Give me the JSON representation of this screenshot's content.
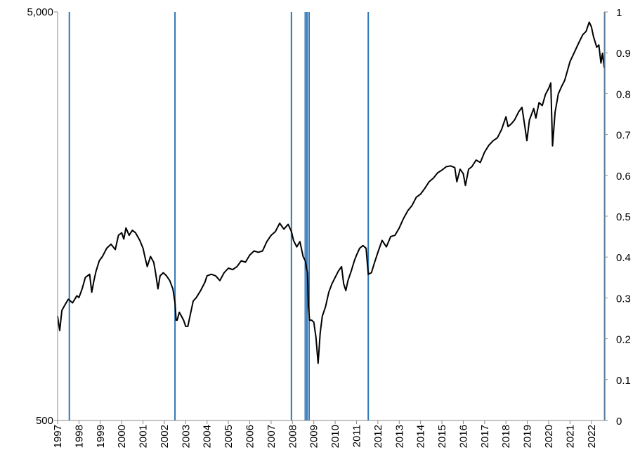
{
  "chart_data": {
    "type": "line",
    "title": "",
    "xlabel": "",
    "ylabel": "",
    "y_left": {
      "scale": "log",
      "range": [
        500,
        5000
      ],
      "tick_labels": [
        "5,000",
        "500"
      ]
    },
    "y_right": {
      "range": [
        0,
        1
      ],
      "tick_labels": [
        "1",
        "0.9",
        "0.8",
        "0.7",
        "0.6",
        "0.5",
        "0.4",
        "0.3",
        "0.2",
        "0.1",
        "0"
      ]
    },
    "x_range": [
      1997.0,
      2022.6
    ],
    "x_tick_labels": [
      "1997",
      "1998",
      "1999",
      "2000",
      "2001",
      "2002",
      "2003",
      "2004",
      "2005",
      "2006",
      "2007",
      "2008",
      "2009",
      "2010",
      "2011",
      "2012",
      "2013",
      "2014",
      "2015",
      "2016",
      "2017",
      "2018",
      "2019",
      "2020",
      "2021",
      "2022"
    ],
    "grid": false,
    "legend": "none",
    "line_color": "#000000",
    "vline_color": "#2e75b6",
    "series": [
      {
        "points": [
          [
            1997.0,
            900
          ],
          [
            1997.1,
            830
          ],
          [
            1997.2,
            930
          ],
          [
            1997.35,
            960
          ],
          [
            1997.5,
            990
          ],
          [
            1997.7,
            970
          ],
          [
            1997.9,
            1010
          ],
          [
            1998.0,
            1000
          ],
          [
            1998.15,
            1050
          ],
          [
            1998.3,
            1120
          ],
          [
            1998.5,
            1140
          ],
          [
            1998.6,
            1030
          ],
          [
            1998.7,
            1100
          ],
          [
            1998.8,
            1160
          ],
          [
            1998.95,
            1230
          ],
          [
            1999.1,
            1260
          ],
          [
            1999.3,
            1320
          ],
          [
            1999.5,
            1350
          ],
          [
            1999.7,
            1310
          ],
          [
            1999.85,
            1420
          ],
          [
            2000.0,
            1440
          ],
          [
            2000.1,
            1390
          ],
          [
            2000.2,
            1480
          ],
          [
            2000.35,
            1420
          ],
          [
            2000.5,
            1460
          ],
          [
            2000.65,
            1440
          ],
          [
            2000.85,
            1380
          ],
          [
            2001.0,
            1320
          ],
          [
            2001.1,
            1250
          ],
          [
            2001.2,
            1190
          ],
          [
            2001.35,
            1260
          ],
          [
            2001.5,
            1220
          ],
          [
            2001.6,
            1140
          ],
          [
            2001.7,
            1050
          ],
          [
            2001.8,
            1130
          ],
          [
            2001.95,
            1150
          ],
          [
            2002.1,
            1130
          ],
          [
            2002.25,
            1100
          ],
          [
            2002.4,
            1050
          ],
          [
            2002.5,
            970
          ],
          [
            2002.55,
            880
          ],
          [
            2002.6,
            880
          ],
          [
            2002.7,
            920
          ],
          [
            2002.8,
            900
          ],
          [
            2002.9,
            880
          ],
          [
            2003.0,
            850
          ],
          [
            2003.1,
            850
          ],
          [
            2003.2,
            900
          ],
          [
            2003.35,
            980
          ],
          [
            2003.5,
            1000
          ],
          [
            2003.7,
            1040
          ],
          [
            2003.9,
            1090
          ],
          [
            2004.0,
            1130
          ],
          [
            2004.2,
            1140
          ],
          [
            2004.4,
            1130
          ],
          [
            2004.6,
            1100
          ],
          [
            2004.8,
            1150
          ],
          [
            2005.0,
            1180
          ],
          [
            2005.2,
            1170
          ],
          [
            2005.4,
            1190
          ],
          [
            2005.6,
            1230
          ],
          [
            2005.8,
            1220
          ],
          [
            2006.0,
            1270
          ],
          [
            2006.2,
            1300
          ],
          [
            2006.4,
            1290
          ],
          [
            2006.6,
            1300
          ],
          [
            2006.8,
            1370
          ],
          [
            2007.0,
            1420
          ],
          [
            2007.2,
            1450
          ],
          [
            2007.4,
            1520
          ],
          [
            2007.6,
            1470
          ],
          [
            2007.8,
            1510
          ],
          [
            2007.95,
            1450
          ],
          [
            2008.05,
            1380
          ],
          [
            2008.2,
            1330
          ],
          [
            2008.35,
            1370
          ],
          [
            2008.5,
            1260
          ],
          [
            2008.6,
            1230
          ],
          [
            2008.7,
            1150
          ],
          [
            2008.75,
            950
          ],
          [
            2008.8,
            880
          ],
          [
            2008.9,
            880
          ],
          [
            2009.0,
            870
          ],
          [
            2009.1,
            800
          ],
          [
            2009.2,
            690
          ],
          [
            2009.3,
            820
          ],
          [
            2009.4,
            900
          ],
          [
            2009.55,
            950
          ],
          [
            2009.7,
            1030
          ],
          [
            2009.85,
            1080
          ],
          [
            2010.0,
            1120
          ],
          [
            2010.15,
            1160
          ],
          [
            2010.3,
            1190
          ],
          [
            2010.4,
            1080
          ],
          [
            2010.5,
            1040
          ],
          [
            2010.6,
            1100
          ],
          [
            2010.75,
            1160
          ],
          [
            2010.9,
            1230
          ],
          [
            2011.0,
            1270
          ],
          [
            2011.15,
            1320
          ],
          [
            2011.3,
            1340
          ],
          [
            2011.45,
            1320
          ],
          [
            2011.55,
            1140
          ],
          [
            2011.7,
            1150
          ],
          [
            2011.85,
            1220
          ],
          [
            2012.0,
            1290
          ],
          [
            2012.2,
            1380
          ],
          [
            2012.4,
            1330
          ],
          [
            2012.6,
            1410
          ],
          [
            2012.8,
            1420
          ],
          [
            2013.0,
            1480
          ],
          [
            2013.2,
            1560
          ],
          [
            2013.4,
            1630
          ],
          [
            2013.6,
            1680
          ],
          [
            2013.8,
            1760
          ],
          [
            2014.0,
            1790
          ],
          [
            2014.2,
            1850
          ],
          [
            2014.4,
            1920
          ],
          [
            2014.6,
            1960
          ],
          [
            2014.8,
            2020
          ],
          [
            2015.0,
            2050
          ],
          [
            2015.2,
            2090
          ],
          [
            2015.4,
            2100
          ],
          [
            2015.6,
            2080
          ],
          [
            2015.7,
            1920
          ],
          [
            2015.85,
            2060
          ],
          [
            2016.0,
            2010
          ],
          [
            2016.1,
            1880
          ],
          [
            2016.25,
            2060
          ],
          [
            2016.4,
            2090
          ],
          [
            2016.6,
            2170
          ],
          [
            2016.8,
            2140
          ],
          [
            2017.0,
            2270
          ],
          [
            2017.2,
            2360
          ],
          [
            2017.4,
            2420
          ],
          [
            2017.6,
            2460
          ],
          [
            2017.8,
            2580
          ],
          [
            2018.0,
            2770
          ],
          [
            2018.1,
            2620
          ],
          [
            2018.25,
            2660
          ],
          [
            2018.4,
            2720
          ],
          [
            2018.6,
            2850
          ],
          [
            2018.75,
            2920
          ],
          [
            2018.85,
            2700
          ],
          [
            2018.98,
            2420
          ],
          [
            2019.1,
            2720
          ],
          [
            2019.3,
            2900
          ],
          [
            2019.4,
            2750
          ],
          [
            2019.55,
            3000
          ],
          [
            2019.7,
            2950
          ],
          [
            2019.85,
            3140
          ],
          [
            2020.0,
            3250
          ],
          [
            2020.1,
            3350
          ],
          [
            2020.18,
            2350
          ],
          [
            2020.3,
            2840
          ],
          [
            2020.45,
            3150
          ],
          [
            2020.6,
            3280
          ],
          [
            2020.75,
            3400
          ],
          [
            2020.9,
            3620
          ],
          [
            2021.0,
            3780
          ],
          [
            2021.2,
            3980
          ],
          [
            2021.4,
            4190
          ],
          [
            2021.6,
            4400
          ],
          [
            2021.75,
            4480
          ],
          [
            2021.9,
            4720
          ],
          [
            2022.0,
            4600
          ],
          [
            2022.1,
            4350
          ],
          [
            2022.25,
            4100
          ],
          [
            2022.35,
            4150
          ],
          [
            2022.45,
            3750
          ],
          [
            2022.52,
            3960
          ],
          [
            2022.6,
            3650
          ]
        ]
      }
    ],
    "vertical_lines_x": [
      1997.55,
      2002.5,
      2007.95,
      2008.6,
      2008.68,
      2008.78,
      2011.55,
      2022.62
    ]
  }
}
